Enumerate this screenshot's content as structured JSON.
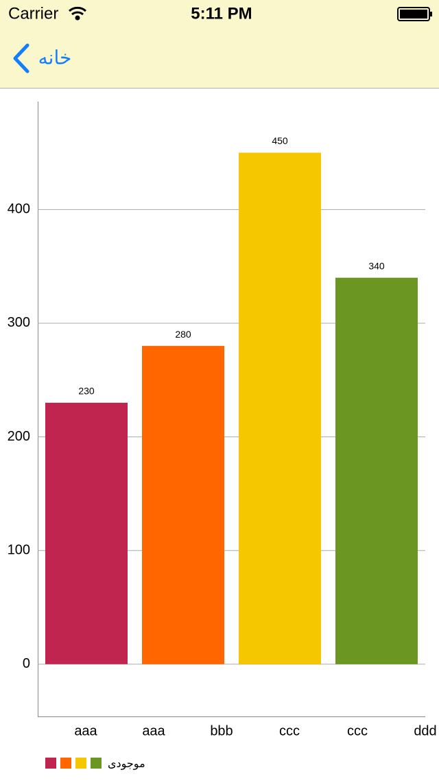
{
  "status_bar": {
    "carrier": "Carrier",
    "time": "5:11 PM"
  },
  "nav_bar": {
    "back": "خانه"
  },
  "chart_data": {
    "type": "bar",
    "x_labels": [
      "aaa",
      "aaa",
      "bbb",
      "ccc",
      "ccc",
      "ddd"
    ],
    "series": [
      {
        "name": "موجودی",
        "colors": [
          "#c0254f",
          "#ff6600",
          "#f4c700",
          "#6b9621"
        ],
        "values": [
          230,
          280,
          450,
          340
        ]
      }
    ],
    "ylim": [
      -46,
      495
    ],
    "yticks": [
      0,
      100,
      200,
      300,
      400
    ],
    "grid": true
  }
}
